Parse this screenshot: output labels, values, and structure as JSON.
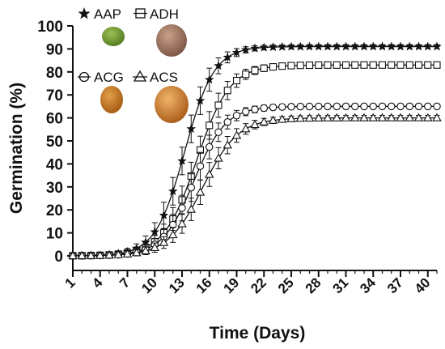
{
  "chart_data": {
    "type": "line",
    "title": "",
    "xlabel": "Time (Days)",
    "ylabel": "Germination (%)",
    "xlim": [
      1,
      41
    ],
    "ylim": [
      0,
      100
    ],
    "x_ticks": [
      1,
      4,
      7,
      10,
      13,
      16,
      19,
      22,
      25,
      28,
      31,
      34,
      37,
      40
    ],
    "y_ticks": [
      0,
      10,
      20,
      30,
      40,
      50,
      60,
      70,
      80,
      90,
      100
    ],
    "grid": false,
    "legend_position": "top-left",
    "series": [
      {
        "name": "AAP",
        "marker": "star",
        "max": 91,
        "t50": 13.3,
        "k": 0.62,
        "err": 2.5
      },
      {
        "name": "ADH",
        "marker": "square",
        "max": 83,
        "t50": 14.6,
        "k": 0.55,
        "err": 3
      },
      {
        "name": "ACG",
        "marker": "circle",
        "max": 65,
        "t50": 14.3,
        "k": 0.58,
        "err": 3
      },
      {
        "name": "ACS",
        "marker": "triangle",
        "max": 60,
        "t50": 15.3,
        "k": 0.52,
        "err": 3
      }
    ],
    "point_note_days": "one point per day from day 1 to day 41"
  }
}
